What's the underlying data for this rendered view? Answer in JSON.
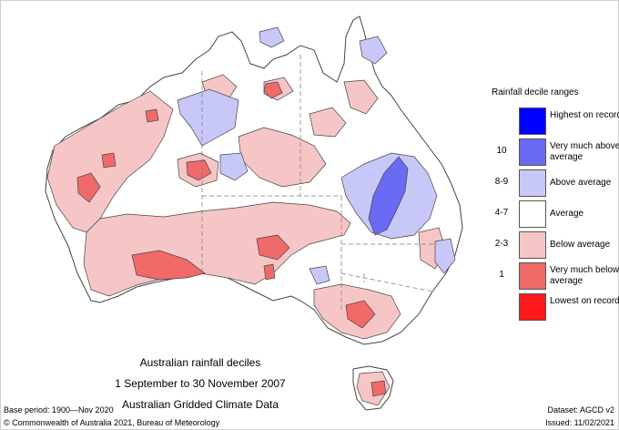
{
  "title": {
    "line1": "Australian rainfall deciles",
    "line2": "1 September to 30 November 2007",
    "line3": "Australian Gridded Climate Data"
  },
  "legend": {
    "title": "Rainfall decile ranges",
    "items": [
      {
        "range": "",
        "label": "Highest on record",
        "color": "#0000ff"
      },
      {
        "range": "10",
        "label": "Very much above average",
        "color": "#6a6af5"
      },
      {
        "range": "8-9",
        "label": "Above average",
        "color": "#c8c8f8"
      },
      {
        "range": "4-7",
        "label": "Average",
        "color": "#ffffff"
      },
      {
        "range": "2-3",
        "label": "Below average",
        "color": "#f6c6c6"
      },
      {
        "range": "1",
        "label": "Very much below average",
        "color": "#f06a6a"
      },
      {
        "range": "",
        "label": "Lowest on record",
        "color": "#ff1a1a"
      }
    ]
  },
  "footer": {
    "base_period": "Base period: 1900—Nov 2020",
    "dataset": "Dataset: AGCD v2",
    "copyright": "© Commonwealth of Australia 2021, Bureau of Meteorology",
    "issued": "Issued: 11/02/2021"
  },
  "colors": {
    "below": "#f6c6c6",
    "very_below": "#f06a6a",
    "above": "#c8c8f8",
    "very_above": "#6a6af5",
    "border": "#444444",
    "state_line": "#777777"
  }
}
